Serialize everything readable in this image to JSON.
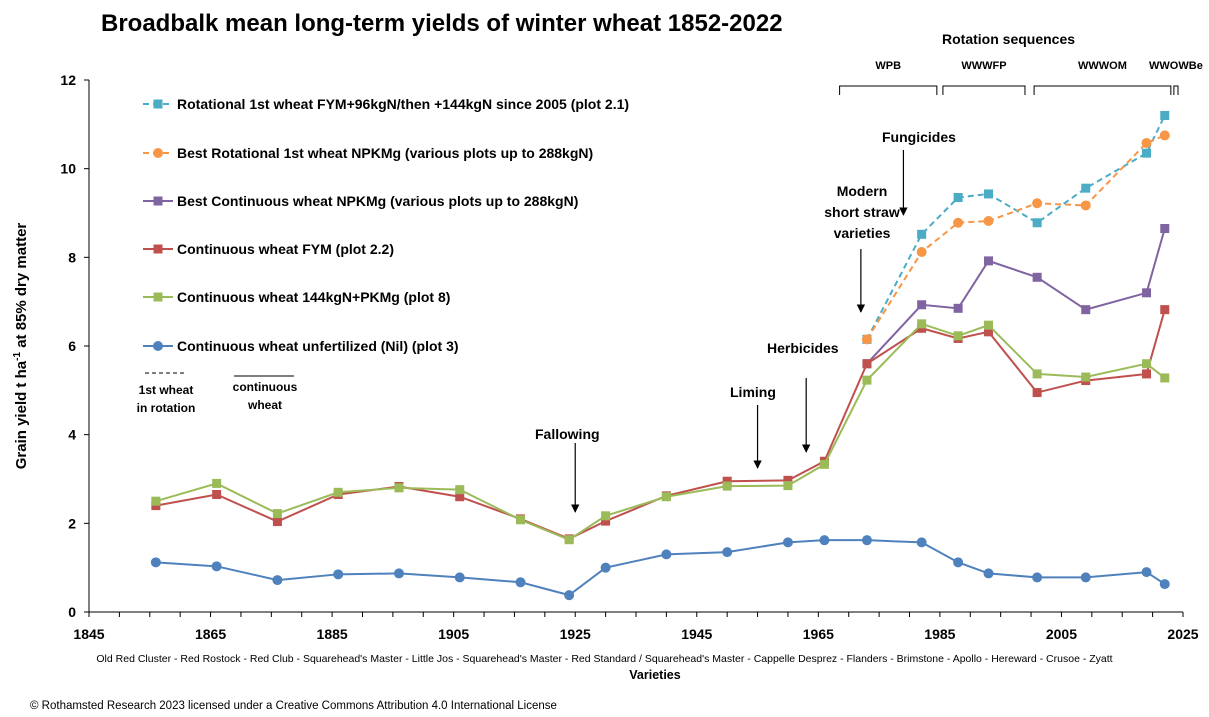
{
  "chart_data": {
    "type": "line",
    "title": "Broadbalk mean long-term yields of winter wheat 1852-2022",
    "ylabel_main": "Grain yield t ha",
    "ylabel_sup": "-1",
    "ylabel_tail": " at 85% dry matter",
    "xlabel": "Varieties",
    "varieties_text": "Old Red Cluster - Red Rostock - Red Club - Squarehead's Master - Little Jos - Squarehead's Master - Red Standard / Squarehead's Master - Cappelle Desprez - Flanders - Brimstone - Apollo - Hereward - Crusoe - Zyatt",
    "xlim": [
      1845,
      2025
    ],
    "ylim": [
      0,
      12
    ],
    "x_ticks": [
      1845,
      1865,
      1885,
      1905,
      1925,
      1945,
      1965,
      1985,
      2005,
      2025
    ],
    "y_ticks": [
      0,
      2,
      4,
      6,
      8,
      10,
      12
    ],
    "grid": false,
    "legend_position": "left",
    "series": [
      {
        "name": "Rotational 1st wheat  FYM+96kgN/then +144kgN since 2005 (plot 2.1)",
        "color": "#4BACC6",
        "marker": "square",
        "dashed": true,
        "points": [
          [
            1973,
            6.15
          ],
          [
            1982,
            8.52
          ],
          [
            1988,
            9.35
          ],
          [
            1993,
            9.43
          ],
          [
            2001,
            8.78
          ],
          [
            2009,
            9.56
          ],
          [
            2019,
            10.35
          ],
          [
            2022,
            11.2
          ]
        ]
      },
      {
        "name": "Best Rotational 1st wheat  NPKMg (various plots up to 288kgN)",
        "color": "#F79646",
        "marker": "circle",
        "dashed": true,
        "points": [
          [
            1973,
            6.15
          ],
          [
            1982,
            8.12
          ],
          [
            1988,
            8.78
          ],
          [
            1993,
            8.82
          ],
          [
            2001,
            9.22
          ],
          [
            2009,
            9.17
          ],
          [
            2019,
            10.58
          ],
          [
            2022,
            10.75
          ]
        ]
      },
      {
        "name": "Best Continuous wheat NPKMg (various plots up to 288kgN)",
        "color": "#8064A2",
        "marker": "square",
        "dashed": false,
        "points": [
          [
            1973,
            5.6
          ],
          [
            1982,
            6.93
          ],
          [
            1988,
            6.85
          ],
          [
            1993,
            7.92
          ],
          [
            2001,
            7.55
          ],
          [
            2009,
            6.82
          ],
          [
            2019,
            7.2
          ],
          [
            2022,
            8.65
          ]
        ]
      },
      {
        "name": "Continuous wheat FYM (plot 2.2)",
        "color": "#C0504D",
        "marker": "square",
        "dashed": false,
        "points": [
          [
            1856,
            2.4
          ],
          [
            1866,
            2.65
          ],
          [
            1876,
            2.04
          ],
          [
            1886,
            2.65
          ],
          [
            1896,
            2.83
          ],
          [
            1906,
            2.6
          ],
          [
            1916,
            2.1
          ],
          [
            1924,
            1.65
          ],
          [
            1930,
            2.05
          ],
          [
            1940,
            2.62
          ],
          [
            1950,
            2.95
          ],
          [
            1960,
            2.97
          ],
          [
            1966,
            3.4
          ],
          [
            1973,
            5.6
          ],
          [
            1982,
            6.4
          ],
          [
            1988,
            6.17
          ],
          [
            1993,
            6.32
          ],
          [
            2001,
            4.95
          ],
          [
            2009,
            5.22
          ],
          [
            2019,
            5.37
          ],
          [
            2022,
            6.82
          ]
        ]
      },
      {
        "name": "Continuous wheat 144kgN+PKMg (plot 8)",
        "color": "#9BBB59",
        "marker": "square",
        "dashed": false,
        "points": [
          [
            1856,
            2.5
          ],
          [
            1866,
            2.9
          ],
          [
            1876,
            2.22
          ],
          [
            1886,
            2.7
          ],
          [
            1896,
            2.8
          ],
          [
            1906,
            2.76
          ],
          [
            1916,
            2.08
          ],
          [
            1924,
            1.63
          ],
          [
            1930,
            2.17
          ],
          [
            1940,
            2.6
          ],
          [
            1950,
            2.84
          ],
          [
            1960,
            2.85
          ],
          [
            1966,
            3.33
          ],
          [
            1973,
            5.23
          ],
          [
            1982,
            6.5
          ],
          [
            1988,
            6.23
          ],
          [
            1993,
            6.47
          ],
          [
            2001,
            5.37
          ],
          [
            2009,
            5.3
          ],
          [
            2019,
            5.6
          ],
          [
            2022,
            5.28
          ]
        ]
      },
      {
        "name": "Continuous wheat unfertilized (Nil) (plot 3)",
        "color": "#4F81BD",
        "marker": "circle",
        "dashed": false,
        "points": [
          [
            1856,
            1.12
          ],
          [
            1866,
            1.03
          ],
          [
            1876,
            0.72
          ],
          [
            1886,
            0.85
          ],
          [
            1896,
            0.87
          ],
          [
            1906,
            0.78
          ],
          [
            1916,
            0.67
          ],
          [
            1924,
            0.38
          ],
          [
            1930,
            1.0
          ],
          [
            1940,
            1.3
          ],
          [
            1950,
            1.35
          ],
          [
            1960,
            1.57
          ],
          [
            1966,
            1.62
          ],
          [
            1973,
            1.62
          ],
          [
            1982,
            1.57
          ],
          [
            1988,
            1.12
          ],
          [
            1993,
            0.87
          ],
          [
            2001,
            0.78
          ],
          [
            2009,
            0.78
          ],
          [
            2019,
            0.9
          ],
          [
            2022,
            0.63
          ]
        ]
      }
    ],
    "rotation_sequences": {
      "title": "Rotation sequences",
      "groups": [
        {
          "label": "WPB",
          "from": 1968.5,
          "to": 1984.5
        },
        {
          "label": "WWWFP",
          "from": 1985.5,
          "to": 1999
        },
        {
          "label": "WWWOM",
          "from": 2000.5,
          "to": 2023
        },
        {
          "label": "WWOWBe",
          "from": 2023.5,
          "to": 2030
        }
      ]
    },
    "annotations": [
      {
        "key": "fallowing",
        "text": "Fallowing",
        "x": 1925,
        "y": 2.2
      },
      {
        "key": "liming",
        "text": "Liming",
        "x": 1955,
        "y": 3.3
      },
      {
        "key": "herbicides",
        "text": "Herbicides",
        "x": 1963,
        "y": 3.6
      },
      {
        "key": "modern",
        "text": "Modern\nshort straw\nvarieties",
        "x": 1972,
        "y": 6.5
      },
      {
        "key": "fungicides",
        "text": "Fungicides",
        "x": 1979,
        "y": 8.9
      }
    ],
    "line_style_key": {
      "dashed": "1st wheat in rotation",
      "solid": "continuous wheat"
    }
  },
  "annotation_text": {
    "fallowing": "Fallowing",
    "liming": "Liming",
    "herbicides": "Herbicides",
    "modern_1": "Modern",
    "modern_2": "short straw",
    "modern_3": "varieties",
    "fungicides": "Fungicides"
  },
  "style_key": {
    "dashed_1": "1st wheat",
    "dashed_2": "in rotation",
    "solid_1": "continuous",
    "solid_2": "wheat"
  },
  "copyright": "© Rothamsted Research 2023 licensed under a Creative Commons Attribution 4.0 International License"
}
